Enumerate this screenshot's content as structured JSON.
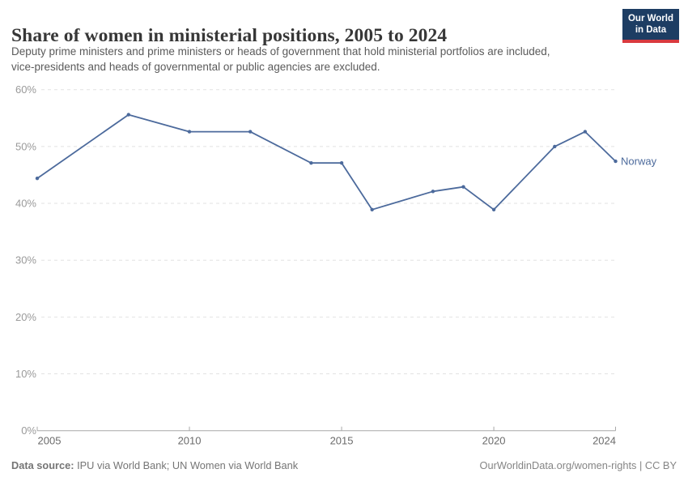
{
  "header": {
    "title": "Share of women in ministerial positions, 2005 to 2024",
    "subtitle": "Deputy prime ministers and prime ministers or heads of government that hold ministerial portfolios are included, vice-presidents and heads of governmental or public agencies are excluded.",
    "logo": {
      "line1": "Our World",
      "line2": "in Data",
      "bg_color": "#1d3d63",
      "accent_color": "#d93a3f"
    }
  },
  "chart_data": {
    "type": "line",
    "title": "Share of women in ministerial positions, 2005 to 2024",
    "xlabel": "",
    "ylabel": "",
    "x_range": [
      2005,
      2024
    ],
    "ylim": [
      0,
      60
    ],
    "y_ticks": [
      0,
      10,
      20,
      30,
      40,
      50,
      60
    ],
    "y_tick_suffix": "%",
    "x_ticks": [
      2005,
      2010,
      2015,
      2020,
      2024
    ],
    "grid": "horizontal-dashed",
    "legend_position": "end-of-line-label",
    "line_color": "#4c6a9c",
    "series": [
      {
        "name": "Norway",
        "color": "#4c6a9c",
        "points": [
          {
            "year": 2005,
            "value": 44.4
          },
          {
            "year": 2008,
            "value": 55.6
          },
          {
            "year": 2010,
            "value": 52.6
          },
          {
            "year": 2012,
            "value": 52.6
          },
          {
            "year": 2014,
            "value": 47.1
          },
          {
            "year": 2015,
            "value": 47.1
          },
          {
            "year": 2016,
            "value": 38.9
          },
          {
            "year": 2018,
            "value": 42.1
          },
          {
            "year": 2019,
            "value": 42.9
          },
          {
            "year": 2020,
            "value": 38.9
          },
          {
            "year": 2022,
            "value": 50.0
          },
          {
            "year": 2023,
            "value": 52.6
          },
          {
            "year": 2024,
            "value": 47.4
          }
        ]
      }
    ]
  },
  "footer": {
    "source_label": "Data source:",
    "source_text": " IPU via World Bank; UN Women via World Bank",
    "rights": "OurWorldinData.org/women-rights | CC BY"
  }
}
